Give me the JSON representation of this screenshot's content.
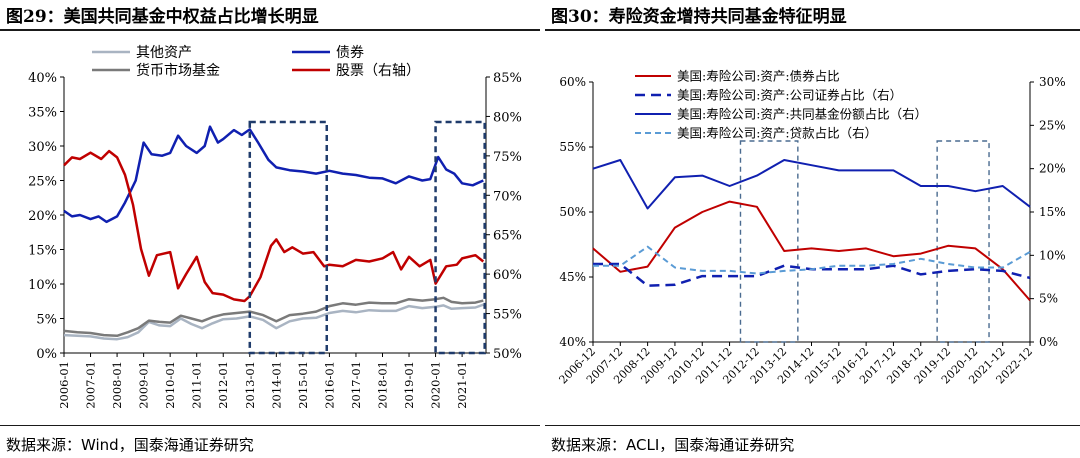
{
  "left": {
    "title": "图29：美国共同基金中权益占比增长明显",
    "source": "数据来源：Wind，国泰海通证券研究",
    "chart_data": {
      "type": "line",
      "legend_placement": "top",
      "x_ticks": [
        "2006-01",
        "2007-01",
        "2008-01",
        "2009-01",
        "2010-01",
        "2011-01",
        "2012-01",
        "2013-01",
        "2014-01",
        "2015-01",
        "2016-01",
        "2017-01",
        "2018-01",
        "2019-01",
        "2020-01",
        "2021-01"
      ],
      "y_left_ticks": [
        "0%",
        "5%",
        "10%",
        "15%",
        "20%",
        "25%",
        "30%",
        "35%",
        "40%"
      ],
      "y_left_range": [
        0,
        40
      ],
      "y_right_ticks": [
        "50%",
        "55%",
        "60%",
        "65%",
        "70%",
        "75%",
        "80%",
        "85%"
      ],
      "y_right_range": [
        50,
        85
      ],
      "series": [
        {
          "name": "其他资产",
          "axis": "left",
          "color": "#a9b4c2",
          "width": 2.5,
          "points": [
            [
              2006.0,
              2.6
            ],
            [
              2006.5,
              2.5
            ],
            [
              2007.0,
              2.4
            ],
            [
              2007.5,
              2.1
            ],
            [
              2008.0,
              2.0
            ],
            [
              2008.4,
              2.3
            ],
            [
              2008.8,
              3.0
            ],
            [
              2009.2,
              4.5
            ],
            [
              2009.6,
              4.0
            ],
            [
              2010.0,
              3.9
            ],
            [
              2010.4,
              5.0
            ],
            [
              2010.8,
              4.2
            ],
            [
              2011.2,
              3.6
            ],
            [
              2011.6,
              4.3
            ],
            [
              2012.0,
              4.9
            ],
            [
              2012.5,
              5.0
            ],
            [
              2013.0,
              5.3
            ],
            [
              2013.5,
              4.8
            ],
            [
              2014.0,
              3.6
            ],
            [
              2014.5,
              4.6
            ],
            [
              2015.0,
              5.0
            ],
            [
              2015.5,
              5.1
            ],
            [
              2016.0,
              5.8
            ],
            [
              2016.5,
              6.1
            ],
            [
              2017.0,
              5.9
            ],
            [
              2017.5,
              6.2
            ],
            [
              2018.0,
              6.1
            ],
            [
              2018.5,
              6.1
            ],
            [
              2019.0,
              6.8
            ],
            [
              2019.5,
              6.5
            ],
            [
              2020.0,
              6.7
            ],
            [
              2020.3,
              6.9
            ],
            [
              2020.6,
              6.4
            ],
            [
              2021.0,
              6.5
            ],
            [
              2021.5,
              6.6
            ],
            [
              2021.8,
              7.0
            ]
          ]
        },
        {
          "name": "债券",
          "axis": "left",
          "color": "#1020b0",
          "width": 2.5,
          "points": [
            [
              2006.0,
              20.6
            ],
            [
              2006.3,
              19.8
            ],
            [
              2006.6,
              20.0
            ],
            [
              2007.0,
              19.4
            ],
            [
              2007.3,
              19.8
            ],
            [
              2007.6,
              19.0
            ],
            [
              2008.0,
              19.8
            ],
            [
              2008.3,
              21.8
            ],
            [
              2008.7,
              25.0
            ],
            [
              2009.0,
              30.5
            ],
            [
              2009.3,
              28.8
            ],
            [
              2009.7,
              28.6
            ],
            [
              2010.0,
              29.0
            ],
            [
              2010.3,
              31.5
            ],
            [
              2010.6,
              30.0
            ],
            [
              2011.0,
              29.0
            ],
            [
              2011.3,
              30.0
            ],
            [
              2011.5,
              32.8
            ],
            [
              2011.8,
              30.5
            ],
            [
              2012.0,
              31.0
            ],
            [
              2012.4,
              32.3
            ],
            [
              2012.7,
              31.6
            ],
            [
              2013.0,
              32.4
            ],
            [
              2013.3,
              30.6
            ],
            [
              2013.7,
              28.0
            ],
            [
              2014.0,
              26.9
            ],
            [
              2014.5,
              26.5
            ],
            [
              2015.0,
              26.3
            ],
            [
              2015.5,
              26.0
            ],
            [
              2016.0,
              26.4
            ],
            [
              2016.5,
              26.0
            ],
            [
              2017.0,
              25.8
            ],
            [
              2017.5,
              25.4
            ],
            [
              2018.0,
              25.3
            ],
            [
              2018.5,
              24.6
            ],
            [
              2019.0,
              25.6
            ],
            [
              2019.5,
              25.0
            ],
            [
              2019.8,
              25.2
            ],
            [
              2020.1,
              28.4
            ],
            [
              2020.4,
              26.6
            ],
            [
              2020.7,
              26.0
            ],
            [
              2021.0,
              24.6
            ],
            [
              2021.4,
              24.3
            ],
            [
              2021.8,
              25.0
            ]
          ]
        },
        {
          "name": "货币市场基金",
          "axis": "left",
          "color": "#7a7a7a",
          "width": 2.5,
          "points": [
            [
              2006.0,
              3.2
            ],
            [
              2006.5,
              3.0
            ],
            [
              2007.0,
              2.9
            ],
            [
              2007.5,
              2.6
            ],
            [
              2008.0,
              2.5
            ],
            [
              2008.4,
              3.0
            ],
            [
              2008.8,
              3.6
            ],
            [
              2009.2,
              4.7
            ],
            [
              2009.6,
              4.5
            ],
            [
              2010.0,
              4.4
            ],
            [
              2010.4,
              5.4
            ],
            [
              2010.8,
              5.0
            ],
            [
              2011.2,
              4.6
            ],
            [
              2011.6,
              5.2
            ],
            [
              2012.0,
              5.6
            ],
            [
              2012.5,
              5.8
            ],
            [
              2013.0,
              6.0
            ],
            [
              2013.5,
              5.5
            ],
            [
              2014.0,
              4.6
            ],
            [
              2014.5,
              5.5
            ],
            [
              2015.0,
              5.7
            ],
            [
              2015.5,
              6.0
            ],
            [
              2016.0,
              6.8
            ],
            [
              2016.5,
              7.2
            ],
            [
              2017.0,
              7.0
            ],
            [
              2017.5,
              7.3
            ],
            [
              2018.0,
              7.2
            ],
            [
              2018.5,
              7.2
            ],
            [
              2019.0,
              7.8
            ],
            [
              2019.5,
              7.6
            ],
            [
              2020.0,
              7.8
            ],
            [
              2020.3,
              8.0
            ],
            [
              2020.6,
              7.4
            ],
            [
              2021.0,
              7.2
            ],
            [
              2021.5,
              7.3
            ],
            [
              2021.8,
              7.6
            ]
          ]
        },
        {
          "name": "股票（右轴）",
          "axis": "right",
          "color": "#c00000",
          "width": 2.5,
          "points": [
            [
              2006.0,
              73.8
            ],
            [
              2006.3,
              74.8
            ],
            [
              2006.6,
              74.6
            ],
            [
              2007.0,
              75.4
            ],
            [
              2007.4,
              74.6
            ],
            [
              2007.7,
              75.6
            ],
            [
              2008.0,
              74.8
            ],
            [
              2008.3,
              72.6
            ],
            [
              2008.6,
              68.8
            ],
            [
              2008.9,
              63.2
            ],
            [
              2009.2,
              59.8
            ],
            [
              2009.5,
              62.4
            ],
            [
              2010.0,
              62.8
            ],
            [
              2010.3,
              58.2
            ],
            [
              2010.6,
              60.0
            ],
            [
              2011.0,
              62.2
            ],
            [
              2011.3,
              59.0
            ],
            [
              2011.6,
              57.6
            ],
            [
              2012.0,
              57.4
            ],
            [
              2012.4,
              56.8
            ],
            [
              2012.8,
              56.6
            ],
            [
              2013.0,
              57.2
            ],
            [
              2013.4,
              59.6
            ],
            [
              2013.8,
              63.6
            ],
            [
              2014.0,
              64.4
            ],
            [
              2014.3,
              62.8
            ],
            [
              2014.6,
              63.4
            ],
            [
              2015.0,
              62.6
            ],
            [
              2015.4,
              62.8
            ],
            [
              2015.8,
              61.0
            ],
            [
              2016.0,
              61.2
            ],
            [
              2016.5,
              61.0
            ],
            [
              2017.0,
              61.8
            ],
            [
              2017.5,
              61.6
            ],
            [
              2018.0,
              62.0
            ],
            [
              2018.4,
              62.8
            ],
            [
              2018.7,
              60.6
            ],
            [
              2019.0,
              62.2
            ],
            [
              2019.4,
              61.0
            ],
            [
              2019.8,
              61.8
            ],
            [
              2020.0,
              58.8
            ],
            [
              2020.4,
              61.0
            ],
            [
              2020.8,
              61.2
            ],
            [
              2021.0,
              62.0
            ],
            [
              2021.5,
              62.4
            ],
            [
              2021.8,
              61.6
            ]
          ]
        }
      ],
      "highlight_boxes": [
        [
          2013.0,
          2015.9
        ],
        [
          2020.0,
          2021.85
        ]
      ]
    }
  },
  "right": {
    "title": "图30：寿险资金增持共同基金特征明显",
    "source": "数据来源：ACLI，国泰海通证券研究",
    "chart_data": {
      "type": "line",
      "legend_placement": "top-left",
      "x_ticks": [
        "2006-12",
        "2007-12",
        "2008-12",
        "2009-12",
        "2010-12",
        "2011-12",
        "2012-12",
        "2013-12",
        "2014-12",
        "2015-12",
        "2016-12",
        "2017-12",
        "2018-12",
        "2019-12",
        "2020-12",
        "2021-12",
        "2022-12"
      ],
      "y_left_ticks": [
        "40%",
        "45%",
        "50%",
        "55%",
        "60%"
      ],
      "y_left_range": [
        40,
        60
      ],
      "y_right_ticks": [
        "0%",
        "5%",
        "10%",
        "15%",
        "20%",
        "25%",
        "30%"
      ],
      "y_right_range": [
        0,
        30
      ],
      "series": [
        {
          "name": "美国:寿险公司:资产:债券占比",
          "axis": "left",
          "color": "#c00000",
          "width": 2,
          "dash": "",
          "values": [
            47.2,
            45.4,
            45.8,
            48.8,
            50.0,
            50.8,
            50.4,
            47.0,
            47.2,
            47.0,
            47.2,
            46.6,
            46.8,
            47.4,
            47.2,
            45.6,
            43.2
          ]
        },
        {
          "name": "美国:寿险公司:资产:公司证券占比（右）",
          "axis": "right",
          "color": "#1020b0",
          "width": 2.5,
          "dash": "10,6",
          "values": [
            9.0,
            9.0,
            6.5,
            6.6,
            7.6,
            7.6,
            7.6,
            8.8,
            8.4,
            8.4,
            8.4,
            8.8,
            7.8,
            8.2,
            8.4,
            8.2,
            7.4
          ]
        },
        {
          "name": "美国:寿险公司:资产:共同基金份额占比（右）",
          "axis": "right",
          "color": "#1020b0",
          "width": 2,
          "dash": "",
          "values": [
            20.0,
            21.0,
            15.4,
            19.0,
            19.2,
            18.0,
            19.2,
            21.0,
            20.4,
            19.8,
            19.8,
            19.8,
            18.0,
            18.0,
            17.4,
            18.0,
            15.6
          ]
        },
        {
          "name": "美国:寿险公司:资产:贷款占比（右）",
          "axis": "right",
          "color": "#5a9bd5",
          "width": 2,
          "dash": "6,4",
          "values": [
            8.8,
            8.8,
            11.0,
            8.6,
            8.2,
            8.2,
            7.9,
            8.2,
            8.4,
            8.8,
            8.8,
            9.0,
            9.6,
            9.0,
            8.6,
            8.6,
            10.4
          ]
        }
      ],
      "highlight_boxes": [
        [
          5.4,
          7.5
        ],
        [
          12.6,
          14.5
        ]
      ]
    }
  }
}
